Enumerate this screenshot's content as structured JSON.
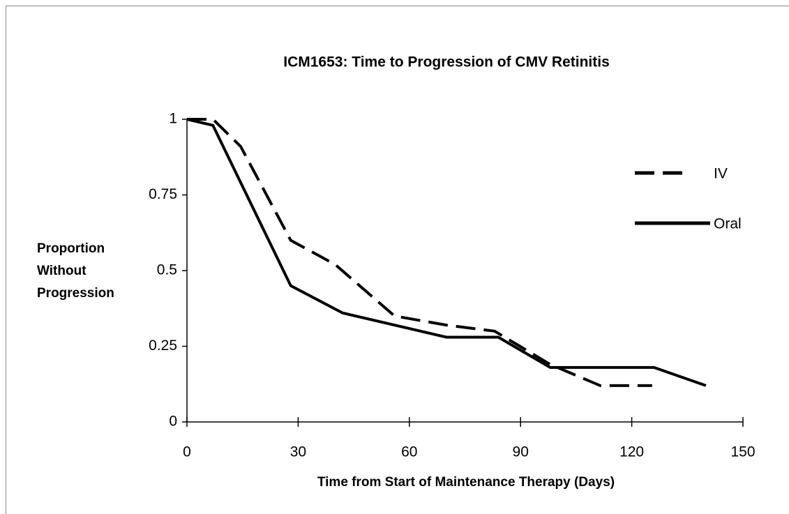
{
  "chart_data": {
    "type": "line",
    "title": "ICM1653:  Time to Progression of CMV Retinitis",
    "xlabel": "Time from Start of Maintenance Therapy (Days)",
    "ylabel": [
      "Proportion",
      "Without",
      "Progression"
    ],
    "xlim": [
      0,
      150
    ],
    "xticks": [
      0,
      30,
      60,
      90,
      120,
      150
    ],
    "ylim": [
      0,
      1
    ],
    "yticks": [
      0,
      0.25,
      0.5,
      0.75,
      1
    ],
    "grid": false,
    "legend": "upper right",
    "series": [
      {
        "name": "IV",
        "color": "#000000",
        "dash": true,
        "x": [
          0,
          7,
          14.5,
          28,
          40,
          56,
          70,
          83,
          98,
          111.5,
          125.5
        ],
        "values": [
          1,
          1,
          0.91,
          0.6,
          0.52,
          0.35,
          0.32,
          0.3,
          0.19,
          0.12,
          0.12
        ]
      },
      {
        "name": "Oral",
        "color": "#000000",
        "dash": false,
        "x": [
          0,
          7,
          28,
          42,
          70,
          84,
          98,
          126,
          140
        ],
        "values": [
          1,
          0.98,
          0.45,
          0.36,
          0.28,
          0.28,
          0.18,
          0.18,
          0.12
        ]
      }
    ]
  }
}
